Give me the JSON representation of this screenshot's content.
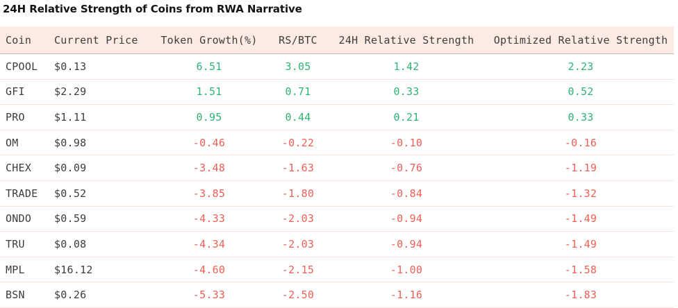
{
  "page": {
    "title": "24H Relative Strength of Coins from RWA Narrative"
  },
  "table": {
    "columns": [
      {
        "key": "coin",
        "label": "Coin"
      },
      {
        "key": "price",
        "label": "Current Price"
      },
      {
        "key": "token_growth",
        "label": "Token Growth(%)"
      },
      {
        "key": "rs_btc",
        "label": "RS/BTC"
      },
      {
        "key": "rs_24h",
        "label": "24H Relative Strength"
      },
      {
        "key": "optimized_rs",
        "label": "Optimized Relative Strength"
      }
    ],
    "rows": [
      {
        "coin": "CPOOL",
        "price": "$0.13",
        "token_growth": "6.51",
        "rs_btc": "3.05",
        "rs_24h": "1.42",
        "optimized_rs": "2.23"
      },
      {
        "coin": "GFI",
        "price": "$2.29",
        "token_growth": "1.51",
        "rs_btc": "0.71",
        "rs_24h": "0.33",
        "optimized_rs": "0.52"
      },
      {
        "coin": "PRO",
        "price": "$1.11",
        "token_growth": "0.95",
        "rs_btc": "0.44",
        "rs_24h": "0.21",
        "optimized_rs": "0.33"
      },
      {
        "coin": "OM",
        "price": "$0.98",
        "token_growth": "-0.46",
        "rs_btc": "-0.22",
        "rs_24h": "-0.10",
        "optimized_rs": "-0.16"
      },
      {
        "coin": "CHEX",
        "price": "$0.09",
        "token_growth": "-3.48",
        "rs_btc": "-1.63",
        "rs_24h": "-0.76",
        "optimized_rs": "-1.19"
      },
      {
        "coin": "TRADE",
        "price": "$0.52",
        "token_growth": "-3.85",
        "rs_btc": "-1.80",
        "rs_24h": "-0.84",
        "optimized_rs": "-1.32"
      },
      {
        "coin": "ONDO",
        "price": "$0.59",
        "token_growth": "-4.33",
        "rs_btc": "-2.03",
        "rs_24h": "-0.94",
        "optimized_rs": "-1.49"
      },
      {
        "coin": "TRU",
        "price": "$0.08",
        "token_growth": "-4.34",
        "rs_btc": "-2.03",
        "rs_24h": "-0.94",
        "optimized_rs": "-1.49"
      },
      {
        "coin": "MPL",
        "price": "$16.12",
        "token_growth": "-4.60",
        "rs_btc": "-2.15",
        "rs_24h": "-1.00",
        "optimized_rs": "-1.58"
      },
      {
        "coin": "BSN",
        "price": "$0.26",
        "token_growth": "-5.33",
        "rs_btc": "-2.50",
        "rs_24h": "-1.16",
        "optimized_rs": "-1.83"
      }
    ]
  },
  "colors": {
    "positive": "#2db473",
    "negative": "#ee5f55",
    "header_bg": "#fcebe3",
    "row_divider": "#fbe4db",
    "header_divider": "#b9b9b9",
    "text_dark": "#3d3d3d",
    "title_color": "#141414",
    "page_bg": "#ffffff"
  }
}
